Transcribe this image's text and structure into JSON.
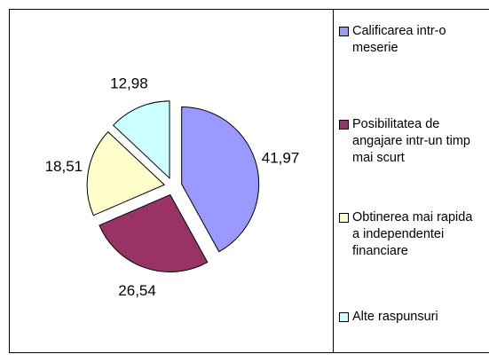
{
  "chart_data": {
    "type": "pie",
    "categories": [
      "Calificarea intr-o meserie",
      "Posibilitatea de angajare intr-un timp mai scurt",
      "Obtinerea mai rapida a independentei financiare",
      "Alte raspunsuri"
    ],
    "values": [
      41.97,
      26.54,
      18.51,
      12.98
    ],
    "value_labels": [
      "41,97",
      "26,54",
      "18,51",
      "12,98"
    ],
    "colors": [
      "#9999ff",
      "#993366",
      "#ffffcc",
      "#ccffff"
    ],
    "legend": "right"
  }
}
